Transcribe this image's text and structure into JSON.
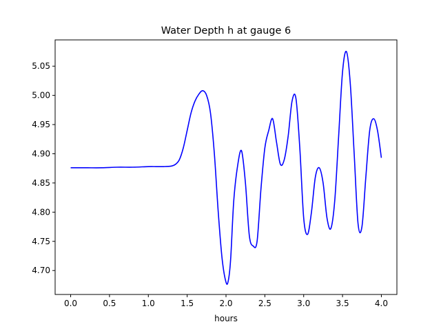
{
  "chart_data": {
    "type": "line",
    "title": "Water Depth h at gauge 6",
    "xlabel": "hours",
    "ylabel": "",
    "xlim": [
      -0.2,
      4.2
    ],
    "ylim": [
      4.659,
      5.095
    ],
    "xticks": [
      0.0,
      0.5,
      1.0,
      1.5,
      2.0,
      2.5,
      3.0,
      3.5,
      4.0
    ],
    "xtick_labels": [
      "0.0",
      "0.5",
      "1.0",
      "1.5",
      "2.0",
      "2.5",
      "3.0",
      "3.5",
      "4.0"
    ],
    "yticks": [
      4.7,
      4.75,
      4.8,
      4.85,
      4.9,
      4.95,
      5.0,
      5.05
    ],
    "ytick_labels": [
      "4.70",
      "4.75",
      "4.80",
      "4.85",
      "4.90",
      "4.95",
      "5.00",
      "5.05"
    ],
    "grid": false,
    "legend": "none",
    "series": [
      {
        "color": "#0000ff",
        "x": [
          0.0,
          0.2,
          0.4,
          0.6,
          0.8,
          1.0,
          1.1,
          1.2,
          1.3,
          1.35,
          1.4,
          1.45,
          1.5,
          1.55,
          1.6,
          1.65,
          1.7,
          1.75,
          1.8,
          1.85,
          1.9,
          1.95,
          2.0,
          2.03,
          2.06,
          2.1,
          2.15,
          2.2,
          2.25,
          2.3,
          2.35,
          2.4,
          2.45,
          2.5,
          2.55,
          2.6,
          2.65,
          2.7,
          2.75,
          2.8,
          2.85,
          2.9,
          2.95,
          3.0,
          3.05,
          3.1,
          3.15,
          3.2,
          3.25,
          3.3,
          3.35,
          3.4,
          3.45,
          3.5,
          3.55,
          3.6,
          3.65,
          3.7,
          3.75,
          3.8,
          3.85,
          3.9,
          3.95,
          4.0
        ],
        "y": [
          4.876,
          4.876,
          4.876,
          4.877,
          4.877,
          4.878,
          4.878,
          4.878,
          4.879,
          4.882,
          4.89,
          4.91,
          4.94,
          4.97,
          4.99,
          5.002,
          5.008,
          5.0,
          4.97,
          4.9,
          4.8,
          4.72,
          4.68,
          4.683,
          4.72,
          4.82,
          4.88,
          4.905,
          4.85,
          4.76,
          4.742,
          4.75,
          4.84,
          4.91,
          4.94,
          4.96,
          4.92,
          4.882,
          4.89,
          4.93,
          4.99,
          4.995,
          4.91,
          4.79,
          4.762,
          4.8,
          4.86,
          4.876,
          4.85,
          4.79,
          4.772,
          4.82,
          4.93,
          5.04,
          5.075,
          5.02,
          4.9,
          4.78,
          4.775,
          4.86,
          4.94,
          4.96,
          4.94,
          4.893
        ]
      }
    ]
  }
}
